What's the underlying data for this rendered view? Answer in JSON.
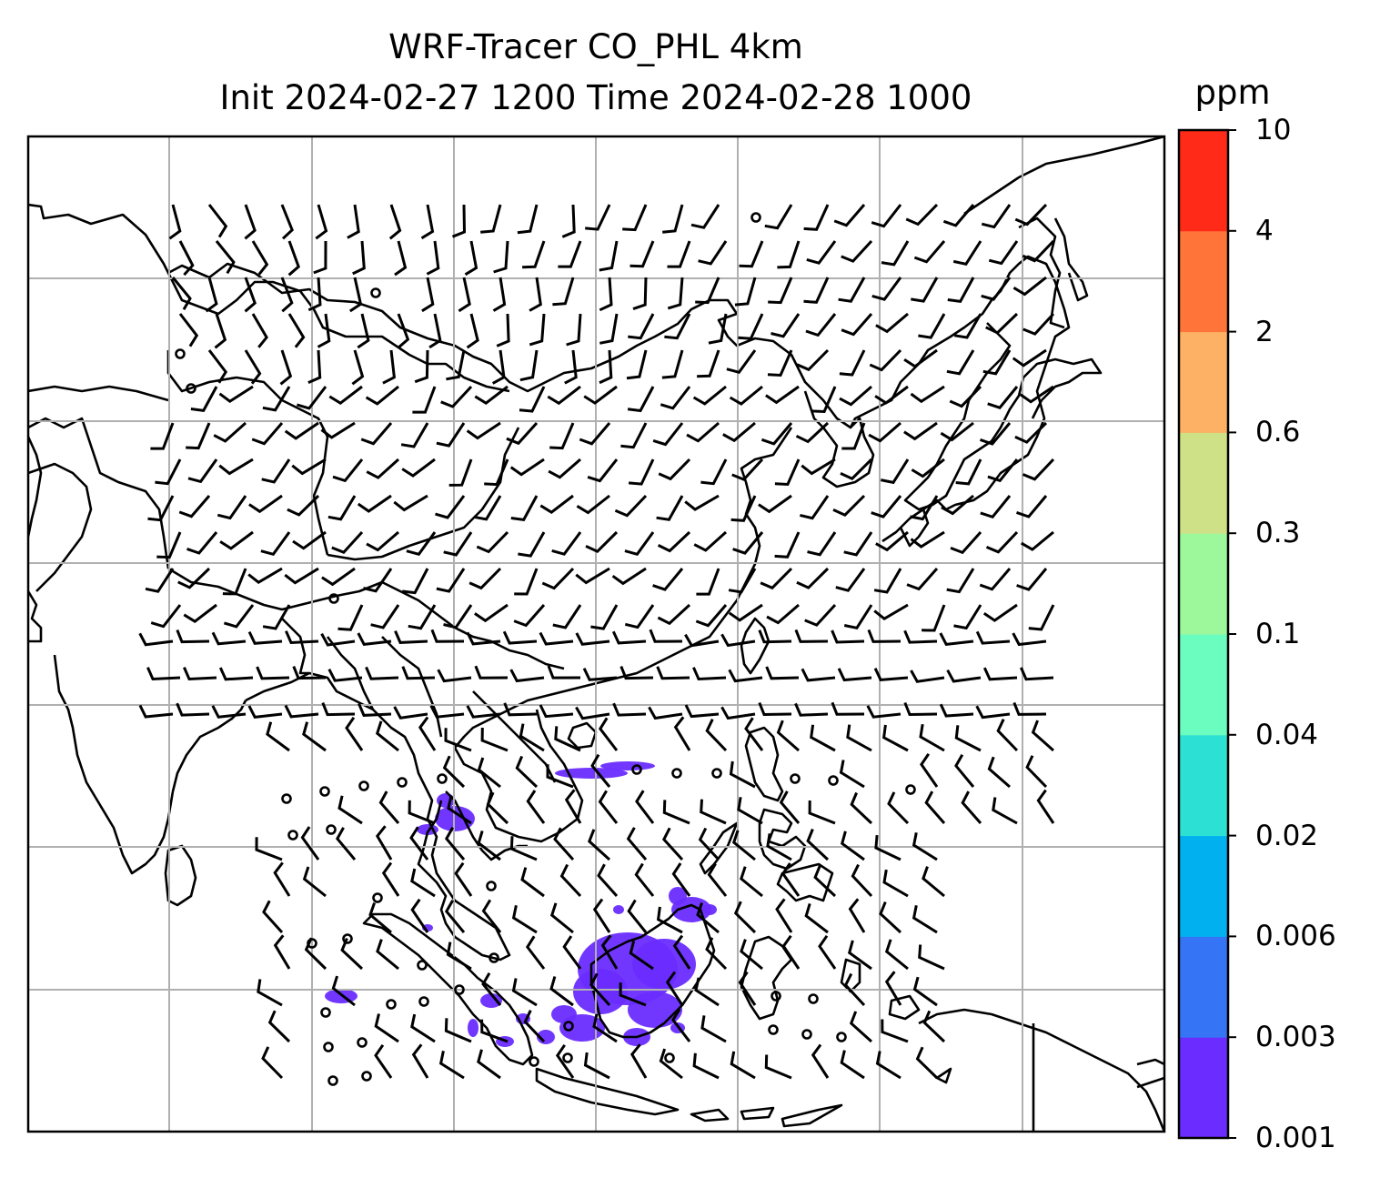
{
  "title": {
    "line1": "WRF-Tracer CO_PHL 4km",
    "line2": "Init 2024-02-27 1200 Time 2024-02-28 1000"
  },
  "colorbar": {
    "unit": "ppm",
    "levels": [
      "0.001",
      "0.003",
      "0.006",
      "0.02",
      "0.04",
      "0.1",
      "0.3",
      "0.6",
      "2",
      "4",
      "10"
    ],
    "colors": [
      "#6a2cff",
      "#3574f4",
      "#00b0ef",
      "#2de0d4",
      "#6bfdbf",
      "#9cf89a",
      "#cfe187",
      "#fdb165",
      "#ff7539",
      "#ff2a17"
    ]
  },
  "map": {
    "field_color": "#6a2cff",
    "coast_color": "#000000",
    "grid_color": "#b0b0b0"
  }
}
